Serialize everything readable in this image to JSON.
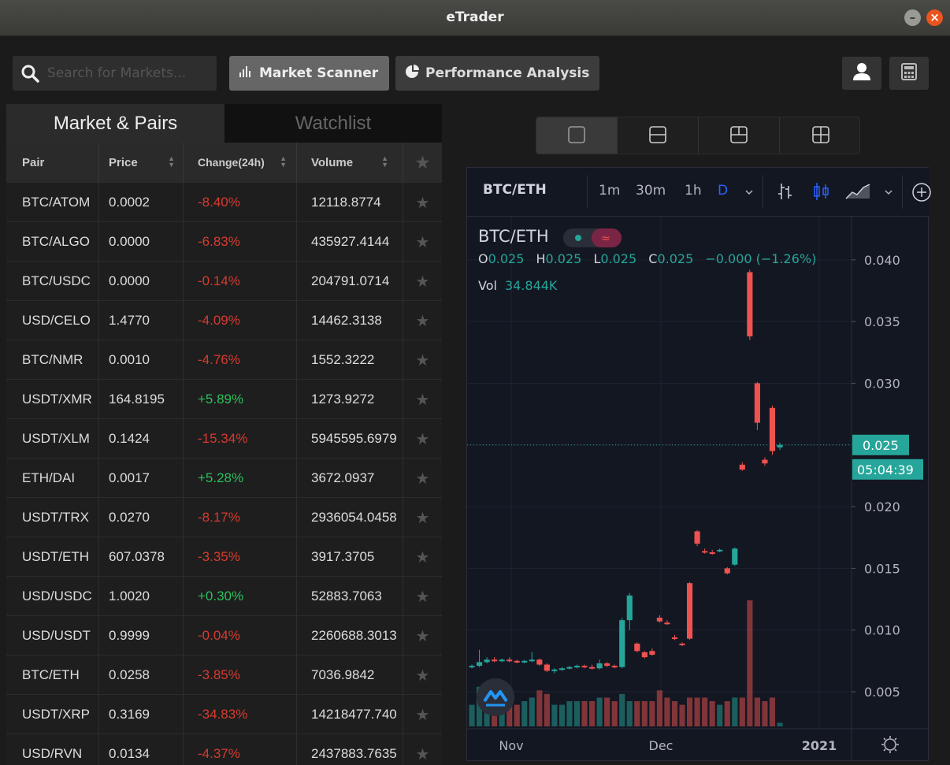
{
  "window": {
    "title": "eTrader"
  },
  "toolbar": {
    "search_placeholder": "Search for Markets...",
    "market_scanner_label": "Market Scanner",
    "performance_label": "Performance Analysis"
  },
  "tabs": {
    "markets_label": "Market & Pairs",
    "watchlist_label": "Watchlist"
  },
  "table": {
    "columns": [
      "Pair",
      "Price",
      "Change(24h)",
      "Volume"
    ],
    "rows": [
      {
        "pair": "BTC/ATOM",
        "price": "0.0002",
        "change": "-8.40%",
        "volume": "12118.8774"
      },
      {
        "pair": "BTC/ALGO",
        "price": "0.0000",
        "change": "-6.83%",
        "volume": "435927.4144"
      },
      {
        "pair": "BTC/USDC",
        "price": "0.0000",
        "change": "-0.14%",
        "volume": "204791.0714"
      },
      {
        "pair": "USD/CELO",
        "price": "1.4770",
        "change": "-4.09%",
        "volume": "14462.3138"
      },
      {
        "pair": "BTC/NMR",
        "price": "0.0010",
        "change": "-4.76%",
        "volume": "1552.3222"
      },
      {
        "pair": "USDT/XMR",
        "price": "164.8195",
        "change": "+5.89%",
        "volume": "1273.9272"
      },
      {
        "pair": "USDT/XLM",
        "price": "0.1424",
        "change": "-15.34%",
        "volume": "5945595.6979"
      },
      {
        "pair": "ETH/DAI",
        "price": "0.0017",
        "change": "+5.28%",
        "volume": "3672.0937"
      },
      {
        "pair": "USDT/TRX",
        "price": "0.0270",
        "change": "-8.17%",
        "volume": "2936054.0458"
      },
      {
        "pair": "USDT/ETH",
        "price": "607.0378",
        "change": "-3.35%",
        "volume": "3917.3705"
      },
      {
        "pair": "USD/USDC",
        "price": "1.0020",
        "change": "+0.30%",
        "volume": "52883.7063"
      },
      {
        "pair": "USD/USDT",
        "price": "0.9999",
        "change": "-0.04%",
        "volume": "2260688.3013"
      },
      {
        "pair": "BTC/ETH",
        "price": "0.0258",
        "change": "-3.85%",
        "volume": "7036.9842"
      },
      {
        "pair": "USDT/XRP",
        "price": "0.3169",
        "change": "-34.83%",
        "volume": "14218477.740"
      },
      {
        "pair": "USD/RVN",
        "price": "0.0134",
        "change": "-4.37%",
        "volume": "2437883.7635"
      }
    ]
  },
  "chart_toolbar": {
    "symbol": "BTC/ETH",
    "intervals": [
      "1m",
      "30m",
      "1h",
      "D"
    ],
    "selected_interval": "D"
  },
  "chart_data": {
    "type": "candlestick",
    "symbol": "BTC/ETH",
    "legend": {
      "title": "BTC/ETH",
      "o_label": "O",
      "o": "0.025",
      "h_label": "H",
      "h": "0.025",
      "l_label": "L",
      "l": "0.025",
      "c_label": "C",
      "c": "0.025",
      "change": "−0.000 (−1.26%)",
      "vol_label": "Vol",
      "vol": "34.844K"
    },
    "y_ticks": [
      "0.040",
      "0.035",
      "0.030",
      "0.025",
      "0.020",
      "0.015",
      "0.010",
      "0.005"
    ],
    "y_range": [
      0.002,
      0.0435
    ],
    "x_ticks": [
      "Nov",
      "Dec",
      "2021"
    ],
    "last_price_label": "0.025",
    "countdown_label": "05:04:39",
    "last_price": 0.025,
    "up_color": "#26a69a",
    "down_color": "#ef5350",
    "candles": [
      {
        "o": 0.007,
        "h": 0.0072,
        "l": 0.0069,
        "c": 0.0071,
        "v": 0.3
      },
      {
        "o": 0.0071,
        "h": 0.0084,
        "l": 0.007,
        "c": 0.0074,
        "v": 0.55
      },
      {
        "o": 0.0074,
        "h": 0.0078,
        "l": 0.0073,
        "c": 0.0076,
        "v": 0.45
      },
      {
        "o": 0.0076,
        "h": 0.0078,
        "l": 0.0074,
        "c": 0.0075,
        "v": 0.4
      },
      {
        "o": 0.0075,
        "h": 0.0077,
        "l": 0.0074,
        "c": 0.0076,
        "v": 0.35
      },
      {
        "o": 0.0076,
        "h": 0.0078,
        "l": 0.0074,
        "c": 0.0075,
        "v": 0.3
      },
      {
        "o": 0.0075,
        "h": 0.0076,
        "l": 0.0073,
        "c": 0.0074,
        "v": 0.3
      },
      {
        "o": 0.0074,
        "h": 0.0076,
        "l": 0.0073,
        "c": 0.0075,
        "v": 0.35
      },
      {
        "o": 0.0075,
        "h": 0.0082,
        "l": 0.0074,
        "c": 0.0076,
        "v": 0.4
      },
      {
        "o": 0.0076,
        "h": 0.0077,
        "l": 0.0071,
        "c": 0.0072,
        "v": 0.5
      },
      {
        "o": 0.0072,
        "h": 0.0073,
        "l": 0.0066,
        "c": 0.0067,
        "v": 0.45
      },
      {
        "o": 0.0067,
        "h": 0.0069,
        "l": 0.0065,
        "c": 0.0068,
        "v": 0.3
      },
      {
        "o": 0.0068,
        "h": 0.007,
        "l": 0.0067,
        "c": 0.0069,
        "v": 0.3
      },
      {
        "o": 0.0069,
        "h": 0.0071,
        "l": 0.0068,
        "c": 0.007,
        "v": 0.35
      },
      {
        "o": 0.007,
        "h": 0.0072,
        "l": 0.0069,
        "c": 0.0071,
        "v": 0.35
      },
      {
        "o": 0.0071,
        "h": 0.0072,
        "l": 0.0069,
        "c": 0.007,
        "v": 0.35
      },
      {
        "o": 0.007,
        "h": 0.0072,
        "l": 0.0068,
        "c": 0.0069,
        "v": 0.35
      },
      {
        "o": 0.0069,
        "h": 0.0076,
        "l": 0.0068,
        "c": 0.0073,
        "v": 0.4
      },
      {
        "o": 0.0073,
        "h": 0.0074,
        "l": 0.007,
        "c": 0.0071,
        "v": 0.4
      },
      {
        "o": 0.0071,
        "h": 0.0072,
        "l": 0.0069,
        "c": 0.007,
        "v": 0.35
      },
      {
        "o": 0.007,
        "h": 0.011,
        "l": 0.0069,
        "c": 0.0108,
        "v": 0.45
      },
      {
        "o": 0.0108,
        "h": 0.013,
        "l": 0.01,
        "c": 0.0128,
        "v": 0.35
      },
      {
        "o": 0.0089,
        "h": 0.009,
        "l": 0.0082,
        "c": 0.0083,
        "v": 0.35
      },
      {
        "o": 0.0082,
        "h": 0.0083,
        "l": 0.0077,
        "c": 0.0078,
        "v": 0.35
      },
      {
        "o": 0.0083,
        "h": 0.0085,
        "l": 0.0079,
        "c": 0.008,
        "v": 0.35
      },
      {
        "o": 0.011,
        "h": 0.0112,
        "l": 0.0106,
        "c": 0.0107,
        "v": 0.5
      },
      {
        "o": 0.0106,
        "h": 0.0108,
        "l": 0.0104,
        "c": 0.0105,
        "v": 0.4
      },
      {
        "o": 0.0094,
        "h": 0.0096,
        "l": 0.0092,
        "c": 0.0093,
        "v": 0.35
      },
      {
        "o": 0.0089,
        "h": 0.009,
        "l": 0.0087,
        "c": 0.0088,
        "v": 0.3
      },
      {
        "o": 0.0138,
        "h": 0.0139,
        "l": 0.0092,
        "c": 0.0093,
        "v": 0.4
      },
      {
        "o": 0.018,
        "h": 0.0181,
        "l": 0.0168,
        "c": 0.017,
        "v": 0.4
      },
      {
        "o": 0.0164,
        "h": 0.0166,
        "l": 0.0162,
        "c": 0.0163,
        "v": 0.4
      },
      {
        "o": 0.0163,
        "h": 0.0165,
        "l": 0.0161,
        "c": 0.0162,
        "v": 0.35
      },
      {
        "o": 0.0164,
        "h": 0.0166,
        "l": 0.0163,
        "c": 0.0165,
        "v": 0.3
      },
      {
        "o": 0.015,
        "h": 0.0151,
        "l": 0.0145,
        "c": 0.0146,
        "v": 0.35
      },
      {
        "o": 0.0153,
        "h": 0.0167,
        "l": 0.0152,
        "c": 0.0166,
        "v": 0.4
      },
      {
        "o": 0.0234,
        "h": 0.0236,
        "l": 0.0229,
        "c": 0.023,
        "v": 0.4
      },
      {
        "o": 0.039,
        "h": 0.0392,
        "l": 0.0335,
        "c": 0.0338,
        "v": 1.75
      },
      {
        "o": 0.03,
        "h": 0.0301,
        "l": 0.0262,
        "c": 0.0268,
        "v": 0.4
      },
      {
        "o": 0.0238,
        "h": 0.024,
        "l": 0.0233,
        "c": 0.0235,
        "v": 0.35
      },
      {
        "o": 0.028,
        "h": 0.0282,
        "l": 0.0242,
        "c": 0.0245,
        "v": 0.4
      },
      {
        "o": 0.0248,
        "h": 0.0252,
        "l": 0.0246,
        "c": 0.025,
        "v": 0.05
      }
    ]
  }
}
